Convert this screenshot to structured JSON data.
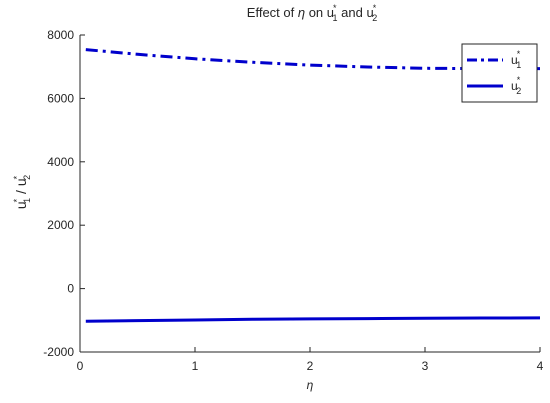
{
  "chart_data": {
    "type": "line",
    "title": {
      "prefix": "Effect of ",
      "symbol": "η",
      "middle": " on u",
      "sub1": "1",
      "sup1": "*",
      "and": " and u",
      "sub2": "2",
      "sup2": "*"
    },
    "xlabel": "η",
    "ylabel": {
      "base1": "u",
      "sub1": "1",
      "sup1": "*",
      "sep": " / u",
      "sub2": "2",
      "sup2": "*"
    },
    "xlim": [
      0,
      4
    ],
    "ylim": [
      -2000,
      8000
    ],
    "xticks": [
      0,
      1,
      2,
      3,
      4
    ],
    "yticks": [
      -2000,
      0,
      2000,
      4000,
      6000,
      8000
    ],
    "grid": false,
    "legend_position": "top-right",
    "colors": {
      "series": "#0000cc",
      "axis": "#262626"
    },
    "series": [
      {
        "name": "u₁*",
        "legend": {
          "base": "u",
          "sub": "1",
          "sup": "*"
        },
        "style": "dash-dot",
        "x": [
          0.05,
          0.5,
          1.0,
          1.5,
          2.0,
          2.5,
          3.0,
          3.5,
          4.0
        ],
        "y": [
          7540,
          7390,
          7250,
          7140,
          7050,
          6990,
          6950,
          6940,
          6940
        ]
      },
      {
        "name": "u₂*",
        "legend": {
          "base": "u",
          "sub": "2",
          "sup": "*"
        },
        "style": "solid",
        "x": [
          0.05,
          0.5,
          1.0,
          1.5,
          2.0,
          2.5,
          3.0,
          3.5,
          4.0
        ],
        "y": [
          -1030,
          -1010,
          -990,
          -970,
          -955,
          -945,
          -935,
          -928,
          -925
        ]
      }
    ]
  }
}
